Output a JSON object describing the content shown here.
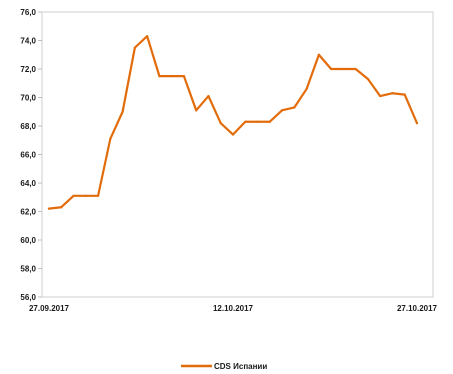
{
  "chart_data": {
    "type": "line",
    "title": "",
    "xlabel": "",
    "ylabel": "",
    "ylim": [
      56,
      76
    ],
    "yticks": [
      "56,0",
      "58,0",
      "60,0",
      "62,0",
      "64,0",
      "66,0",
      "68,0",
      "70,0",
      "72,0",
      "74,0",
      "76,0"
    ],
    "x_ticks": [
      "27.09.2017",
      "12.10.2017",
      "27.10.2017"
    ],
    "x_tick_positions": [
      0,
      15,
      30
    ],
    "grid": false,
    "legend_position": "bottom",
    "series": [
      {
        "name": "CDS Испании",
        "color": "#E36C0A",
        "values": [
          62.2,
          62.3,
          63.1,
          63.1,
          63.1,
          67.1,
          69.0,
          73.5,
          74.3,
          71.5,
          71.5,
          71.5,
          69.1,
          70.1,
          68.2,
          67.4,
          68.3,
          68.3,
          68.3,
          69.1,
          69.3,
          70.6,
          73.0,
          72.0,
          72.0,
          72.0,
          71.3,
          70.1,
          70.3,
          70.2,
          68.2
        ]
      }
    ]
  }
}
